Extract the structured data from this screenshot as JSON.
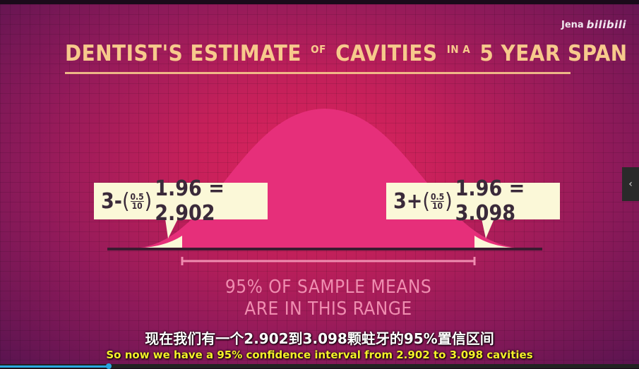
{
  "video": {
    "watermark": {
      "user": "Jena",
      "logo": "bilibili"
    },
    "title": {
      "part1": "DENTIST'S ESTIMATE",
      "part2": "OF",
      "part3": "CAVITIES",
      "part4": "IN A",
      "part5": "5 YEAR SPAN"
    },
    "lower_bound": {
      "prefix": "3-",
      "num": "0.5",
      "den": "10",
      "suffix": "1.96 = 2.902"
    },
    "upper_bound": {
      "prefix": "3+",
      "num": "0.5",
      "den": "10",
      "suffix": "1.96 = 3.098"
    },
    "range_text": {
      "line1": "95% OF SAMPLE MEANS",
      "line2": "ARE IN THIS RANGE"
    },
    "subtitle_cn": "现在我们有一个2.902到3.098颗蛀牙的95%置信区间",
    "subtitle_en": "So now we have a 95% confidence interval from 2.902 to 3.098 cavities"
  },
  "player": {
    "side_button_icon": "chevron-left-icon",
    "progress": 0.17
  },
  "colors": {
    "accent_title": "#f7c98c",
    "curve_fill": "#e62f7a",
    "tail_fill": "#fbf8d8",
    "label_bg": "#fbf8d8",
    "range_text": "#ef8db0",
    "subtitle_en": "#f5f02a",
    "progress": "#29a8e0"
  }
}
